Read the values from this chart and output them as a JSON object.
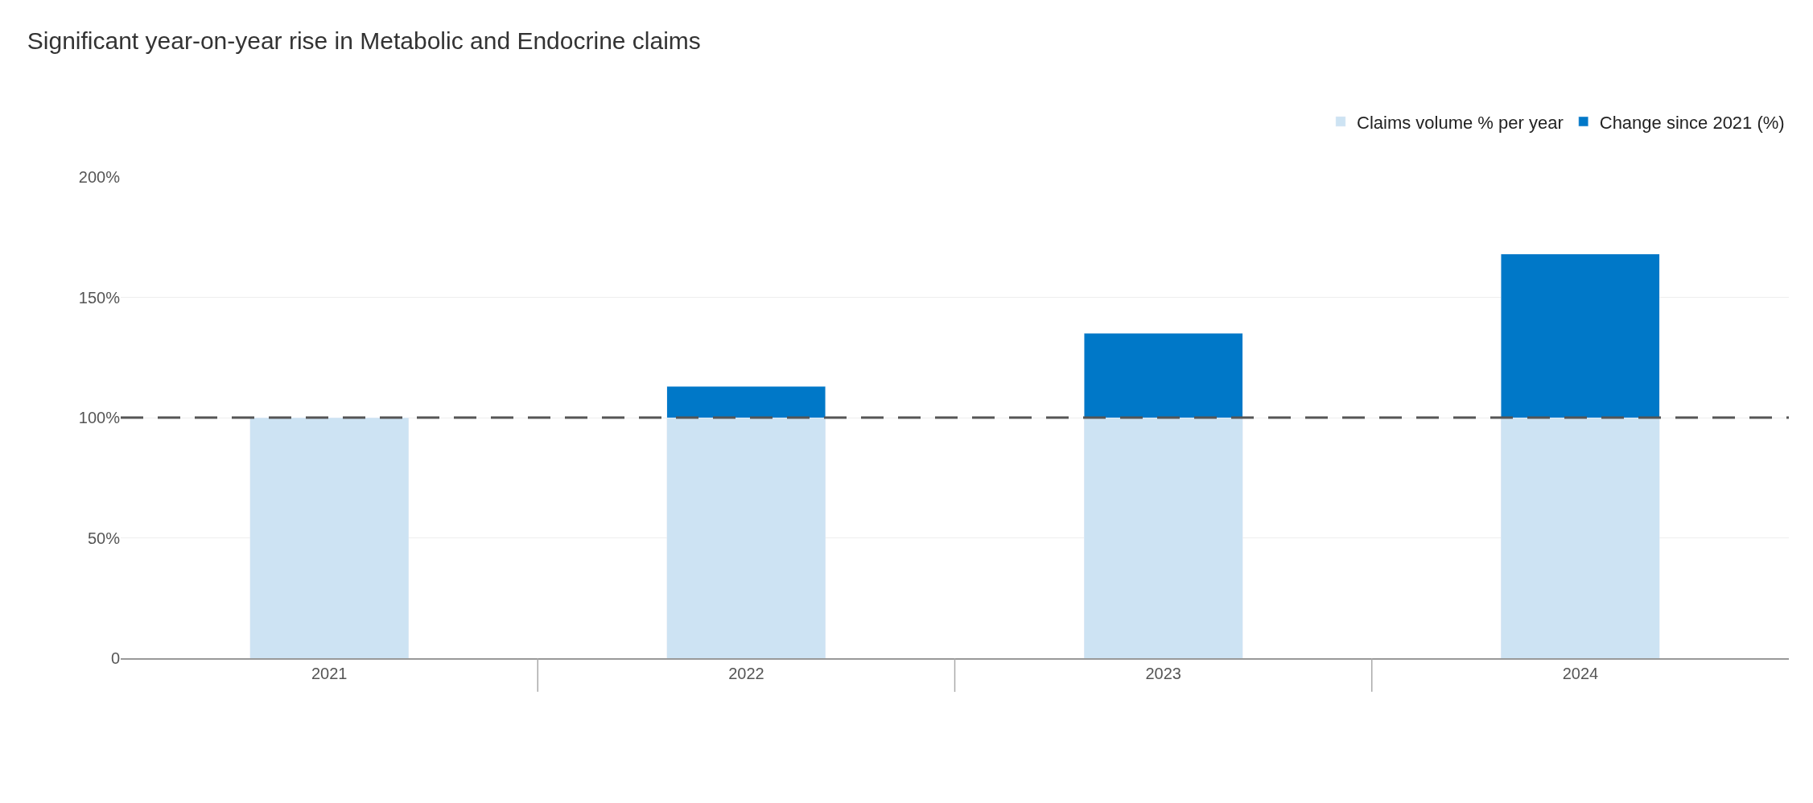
{
  "chart_data": {
    "type": "bar",
    "title": "Significant year-on-year rise in Metabolic and Endocrine claims",
    "categories": [
      "2021",
      "2022",
      "2023",
      "2024"
    ],
    "stacked": true,
    "series": [
      {
        "name": "Claims volume % per year",
        "color": "#cde3f3",
        "values": [
          100,
          100,
          100,
          100
        ]
      },
      {
        "name": "Change since 2021 (%)",
        "color": "#0078c8",
        "values": [
          null,
          13,
          35,
          68
        ]
      }
    ],
    "ylim": [
      0,
      200
    ],
    "yticks": [
      {
        "value": 0,
        "label": "0"
      },
      {
        "value": 50,
        "label": "50%"
      },
      {
        "value": 100,
        "label": "100%"
      },
      {
        "value": 150,
        "label": "150%"
      },
      {
        "value": 200,
        "label": "200%"
      }
    ],
    "ref_lines": [
      {
        "axis": "y",
        "value": 100,
        "label": null,
        "color": "#555555",
        "line_style": "dashed"
      }
    ],
    "grid": "y",
    "legend": "top right"
  }
}
